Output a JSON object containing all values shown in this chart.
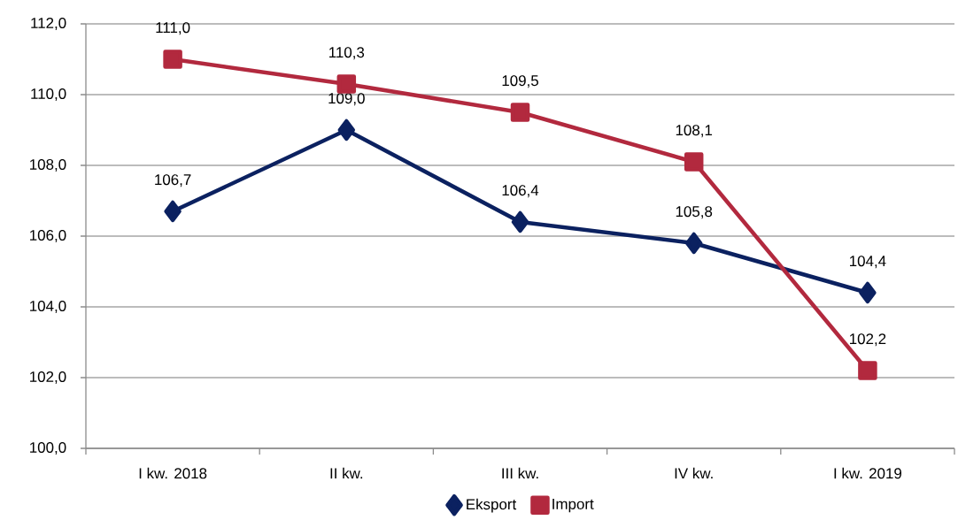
{
  "chart_data": {
    "type": "line",
    "categories": [
      "I kw. 2018",
      "II kw.",
      "III kw.",
      "IV kw.",
      "I kw. 2019"
    ],
    "series": [
      {
        "name": "Eksport",
        "color": "#0b2160",
        "marker": "diamond",
        "values": [
          106.7,
          109.0,
          106.4,
          105.8,
          104.4
        ],
        "value_labels": [
          "106,7",
          "109,0",
          "106,4",
          "105,8",
          "104,4"
        ]
      },
      {
        "name": "Import",
        "color": "#b2293e",
        "marker": "square",
        "values": [
          111.0,
          110.3,
          109.5,
          108.1,
          102.2
        ],
        "value_labels": [
          "111,0",
          "110,3",
          "109,5",
          "108,1",
          "102,2"
        ]
      }
    ],
    "ylim": [
      100,
      112
    ],
    "yticks": [
      {
        "value": 100,
        "label": "100,0"
      },
      {
        "value": 102,
        "label": "102,0"
      },
      {
        "value": 104,
        "label": "104,0"
      },
      {
        "value": 106,
        "label": "106,0"
      },
      {
        "value": 108,
        "label": "108,0"
      },
      {
        "value": 110,
        "label": "110,0"
      },
      {
        "value": 112,
        "label": "112,0"
      }
    ],
    "grid": "y",
    "legend": "bottom"
  }
}
